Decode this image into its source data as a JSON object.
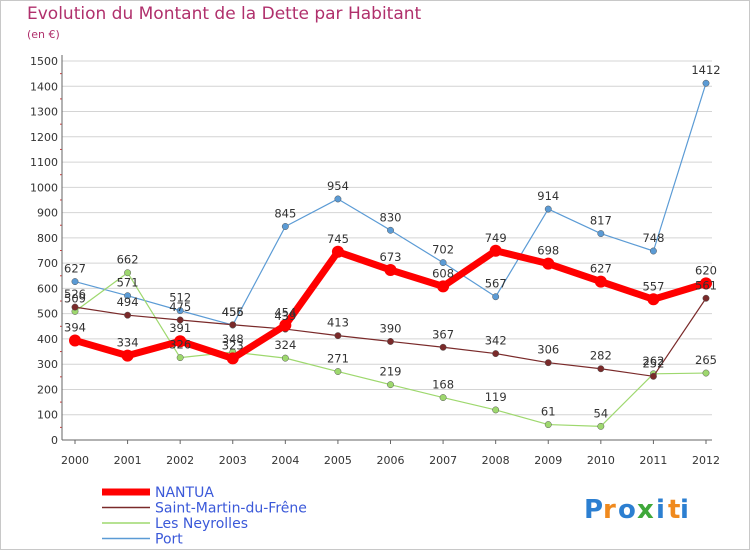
{
  "title": "Evolution du Montant de la Dette par Habitant",
  "unit": "(en €)",
  "logo": [
    "P",
    "r",
    "o",
    "x",
    "i",
    "t",
    "i"
  ],
  "colors": {
    "title": "#b0306c",
    "grid": "#d4d4d4",
    "legend_text": "#3b59d9",
    "logo_letters": [
      "#2c7fd1",
      "#f08a1e",
      "#2c7fd1",
      "#3fa83a",
      "#2c7fd1",
      "#f08a1e",
      "#2c7fd1"
    ]
  },
  "chart_data": {
    "type": "line",
    "title": "Evolution du Montant de la Dette par Habitant",
    "ylabel": "(en €)",
    "ylim": [
      0,
      1500
    ],
    "yticks": [
      0,
      100,
      200,
      300,
      400,
      500,
      600,
      700,
      800,
      900,
      1000,
      1100,
      1200,
      1300,
      1400,
      1500
    ],
    "categories": [
      "2000",
      "2001",
      "2002",
      "2003",
      "2004",
      "2005",
      "2006",
      "2007",
      "2008",
      "2009",
      "2010",
      "2011",
      "2012"
    ],
    "grid": "horizontal",
    "legend_position": "bottom-left",
    "series": [
      {
        "name": "Port",
        "color": "#5b9bd5",
        "stroke": 1.2,
        "values": [
          627,
          571,
          512,
          455,
          845,
          954,
          830,
          702,
          567,
          914,
          817,
          748,
          1412
        ],
        "labels": [
          "627",
          "571",
          "512",
          "455",
          "845",
          "954",
          "830",
          "702",
          "567",
          "914",
          "817",
          "748",
          "1412"
        ]
      },
      {
        "name": "Les Neyrolles",
        "color": "#9ed86e",
        "stroke": 1.2,
        "values": [
          509,
          662,
          326,
          348,
          324,
          271,
          219,
          168,
          119,
          61,
          54,
          262,
          265
        ],
        "labels": [
          "509",
          "662",
          "326",
          "348",
          "324",
          "271",
          "219",
          "168",
          "119",
          "61",
          "54",
          "262",
          "265"
        ]
      },
      {
        "name": "Saint-Martin-du-Frêne",
        "color": "#7a2a2a",
        "stroke": 1.2,
        "values": [
          526,
          494,
          475,
          456,
          439,
          413,
          390,
          367,
          342,
          306,
          282,
          252,
          561
        ],
        "labels": [
          "526",
          "494",
          "475",
          "456",
          "439",
          "413",
          "390",
          "367",
          "342",
          "306",
          "282",
          "252",
          "561"
        ]
      },
      {
        "name": "NANTUA",
        "color": "#ff0000",
        "stroke": 7,
        "values": [
          394,
          334,
          391,
          323,
          454,
          745,
          673,
          608,
          749,
          698,
          627,
          557,
          620
        ],
        "labels": [
          "394",
          "334",
          "391",
          "323",
          "454",
          "745",
          "673",
          "608",
          "749",
          "698",
          "627",
          "557",
          "620"
        ]
      }
    ]
  }
}
